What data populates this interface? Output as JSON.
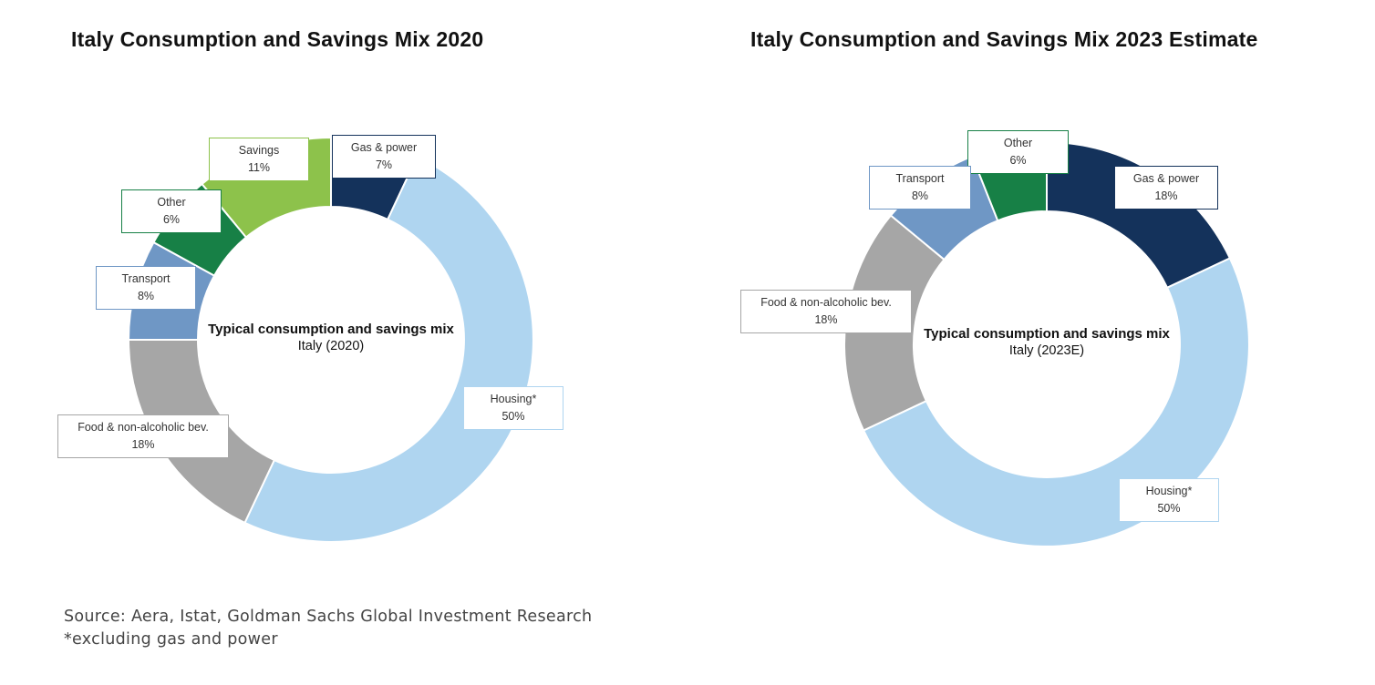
{
  "chart_data": [
    {
      "type": "pie",
      "variant": "donut",
      "title": "Italy Consumption and Savings Mix 2020",
      "center_title": "Typical consumption and savings mix",
      "center_subtitle": "Italy (2020)",
      "slices": [
        {
          "label": "Gas & power",
          "value": 7,
          "value_label": "7%",
          "color": "#14325b"
        },
        {
          "label": "Housing*",
          "value": 50,
          "value_label": "50%",
          "color": "#afd5f0"
        },
        {
          "label": "Food & non-alcoholic bev.",
          "value": 18,
          "value_label": "18%",
          "color": "#a6a6a6"
        },
        {
          "label": "Transport",
          "value": 8,
          "value_label": "8%",
          "color": "#6f97c5"
        },
        {
          "label": "Other",
          "value": 6,
          "value_label": "6%",
          "color": "#178046"
        },
        {
          "label": "Savings",
          "value": 11,
          "value_label": "11%",
          "color": "#8dc24b"
        }
      ]
    },
    {
      "type": "pie",
      "variant": "donut",
      "title": "Italy Consumption and Savings Mix 2023 Estimate",
      "center_title": "Typical consumption and savings mix",
      "center_subtitle": "Italy (2023E)",
      "slices": [
        {
          "label": "Gas & power",
          "value": 18,
          "value_label": "18%",
          "color": "#14325b"
        },
        {
          "label": "Housing*",
          "value": 50,
          "value_label": "50%",
          "color": "#afd5f0"
        },
        {
          "label": "Food & non-alcoholic bev.",
          "value": 18,
          "value_label": "18%",
          "color": "#a6a6a6"
        },
        {
          "label": "Transport",
          "value": 8,
          "value_label": "8%",
          "color": "#6f97c5"
        },
        {
          "label": "Other",
          "value": 6,
          "value_label": "6%",
          "color": "#178046"
        }
      ]
    }
  ],
  "footer": {
    "source": "Source: Aera, Istat, Goldman Sachs Global Investment Research",
    "note": "*excluding gas and power"
  }
}
